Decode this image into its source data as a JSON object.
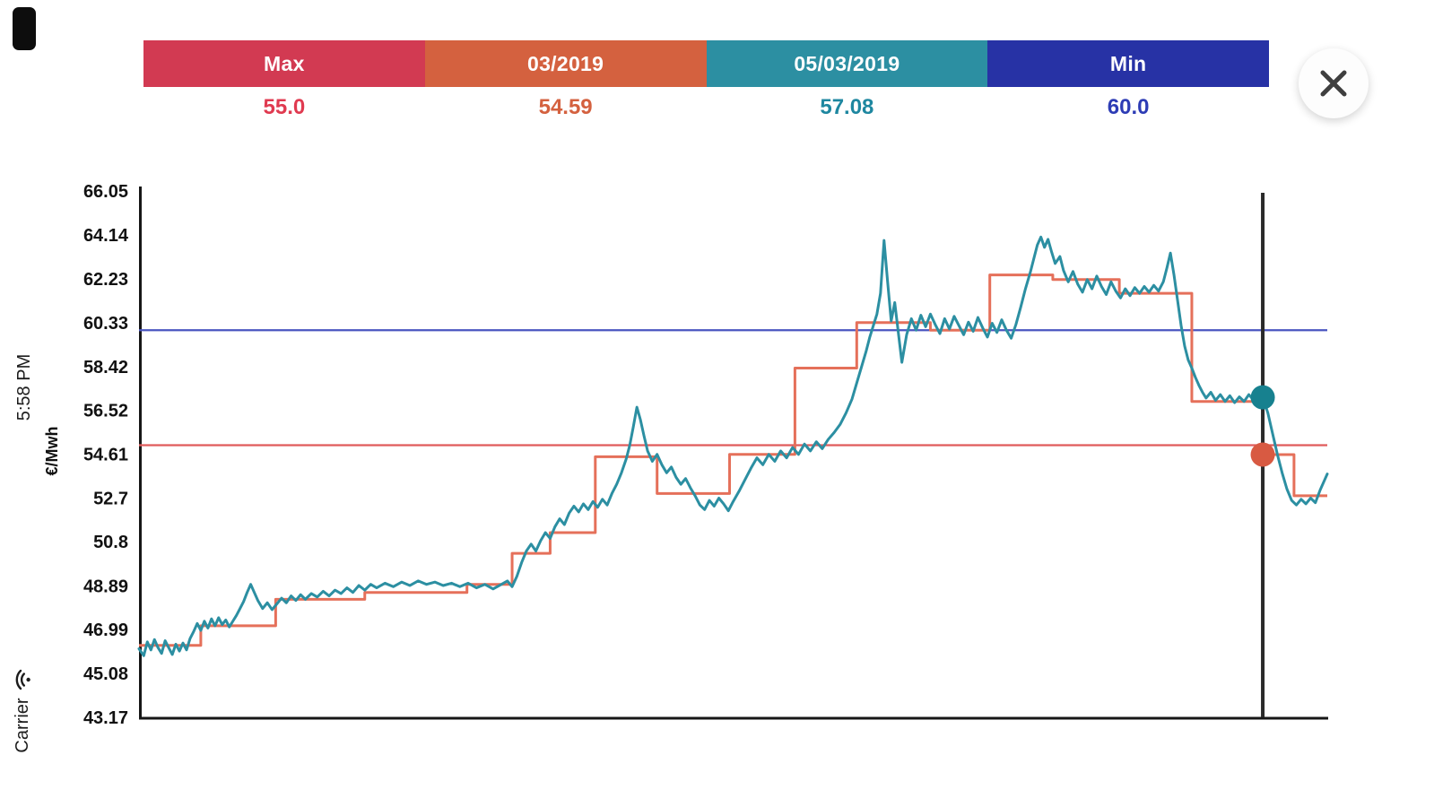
{
  "status_bar": {
    "time": "5:58 PM",
    "carrier": "Carrier"
  },
  "icons": {
    "close": "x-cross",
    "wifi": "wifi-fan",
    "battery": "battery-rotated"
  },
  "header": {
    "segments": [
      {
        "label": "Max",
        "value": "55.0",
        "bar_color": "#d23a52",
        "value_color": "#e03a50"
      },
      {
        "label": "03/2019",
        "value": "54.59",
        "bar_color": "#d4613f",
        "value_color": "#d4613f"
      },
      {
        "label": "05/03/2019",
        "value": "57.08",
        "bar_color": "#2c8fa2",
        "value_color": "#1e87a0"
      },
      {
        "label": "Min",
        "value": "60.0",
        "bar_color": "#2732a5",
        "value_color": "#2d3cb5"
      }
    ]
  },
  "chart_data": {
    "type": "line",
    "title": "",
    "xlabel": "",
    "ylabel": "€/Mwh",
    "ylim": [
      43.17,
      66.05
    ],
    "y_ticks": [
      66.05,
      64.14,
      62.23,
      60.33,
      58.42,
      56.52,
      54.61,
      52.7,
      50.8,
      48.89,
      46.99,
      45.08,
      43.17
    ],
    "x_ticks": [],
    "grid": false,
    "legend_position": "top",
    "reference_lines": [
      {
        "name": "max-level",
        "value": 55.0,
        "color": "#e05b5b"
      },
      {
        "name": "min-level",
        "value": 60.0,
        "color": "#4a55c0"
      }
    ],
    "cursor": {
      "x": 0.9457,
      "date": "05/03/2019",
      "spot_value": 57.08,
      "monthly_value": 54.59
    },
    "markers": [
      {
        "series": "spot",
        "x": 0.9457,
        "value": 57.08,
        "color": "#17818f"
      },
      {
        "series": "monthly",
        "x": 0.9457,
        "value": 54.59,
        "color": "#d85a42"
      }
    ],
    "series": [
      {
        "name": "05/03/2019 spot price",
        "color": "#2c8fa2",
        "points": [
          [
            0,
            46.15
          ],
          [
            0.004,
            45.85
          ],
          [
            0.007,
            46.45
          ],
          [
            0.01,
            46.1
          ],
          [
            0.013,
            46.55
          ],
          [
            0.016,
            46.2
          ],
          [
            0.019,
            45.95
          ],
          [
            0.022,
            46.5
          ],
          [
            0.025,
            46.2
          ],
          [
            0.028,
            45.9
          ],
          [
            0.031,
            46.35
          ],
          [
            0.034,
            46.05
          ],
          [
            0.037,
            46.4
          ],
          [
            0.04,
            46.1
          ],
          [
            0.043,
            46.6
          ],
          [
            0.046,
            46.9
          ],
          [
            0.049,
            47.25
          ],
          [
            0.052,
            46.95
          ],
          [
            0.055,
            47.35
          ],
          [
            0.058,
            47.05
          ],
          [
            0.061,
            47.45
          ],
          [
            0.064,
            47.15
          ],
          [
            0.067,
            47.5
          ],
          [
            0.07,
            47.2
          ],
          [
            0.073,
            47.4
          ],
          [
            0.076,
            47.1
          ],
          [
            0.079,
            47.35
          ],
          [
            0.082,
            47.6
          ],
          [
            0.085,
            47.9
          ],
          [
            0.088,
            48.2
          ],
          [
            0.091,
            48.6
          ],
          [
            0.094,
            48.95
          ],
          [
            0.097,
            48.6
          ],
          [
            0.1,
            48.25
          ],
          [
            0.104,
            47.9
          ],
          [
            0.108,
            48.15
          ],
          [
            0.112,
            47.85
          ],
          [
            0.116,
            48.1
          ],
          [
            0.12,
            48.35
          ],
          [
            0.124,
            48.15
          ],
          [
            0.128,
            48.45
          ],
          [
            0.132,
            48.25
          ],
          [
            0.136,
            48.5
          ],
          [
            0.14,
            48.3
          ],
          [
            0.145,
            48.55
          ],
          [
            0.15,
            48.4
          ],
          [
            0.155,
            48.65
          ],
          [
            0.16,
            48.45
          ],
          [
            0.165,
            48.7
          ],
          [
            0.17,
            48.55
          ],
          [
            0.175,
            48.8
          ],
          [
            0.18,
            48.6
          ],
          [
            0.185,
            48.9
          ],
          [
            0.19,
            48.7
          ],
          [
            0.195,
            48.95
          ],
          [
            0.2,
            48.8
          ],
          [
            0.207,
            49.0
          ],
          [
            0.214,
            48.85
          ],
          [
            0.221,
            49.05
          ],
          [
            0.228,
            48.9
          ],
          [
            0.235,
            49.1
          ],
          [
            0.242,
            48.95
          ],
          [
            0.249,
            49.05
          ],
          [
            0.256,
            48.9
          ],
          [
            0.263,
            49.0
          ],
          [
            0.27,
            48.85
          ],
          [
            0.277,
            49.0
          ],
          [
            0.284,
            48.8
          ],
          [
            0.291,
            48.95
          ],
          [
            0.298,
            48.75
          ],
          [
            0.305,
            48.95
          ],
          [
            0.31,
            49.1
          ],
          [
            0.314,
            48.85
          ],
          [
            0.318,
            49.3
          ],
          [
            0.322,
            49.9
          ],
          [
            0.326,
            50.4
          ],
          [
            0.33,
            50.7
          ],
          [
            0.334,
            50.4
          ],
          [
            0.338,
            50.85
          ],
          [
            0.342,
            51.2
          ],
          [
            0.346,
            50.95
          ],
          [
            0.35,
            51.45
          ],
          [
            0.354,
            51.8
          ],
          [
            0.358,
            51.55
          ],
          [
            0.362,
            52.05
          ],
          [
            0.366,
            52.35
          ],
          [
            0.37,
            52.1
          ],
          [
            0.374,
            52.45
          ],
          [
            0.378,
            52.2
          ],
          [
            0.382,
            52.55
          ],
          [
            0.386,
            52.3
          ],
          [
            0.39,
            52.65
          ],
          [
            0.394,
            52.4
          ],
          [
            0.398,
            52.9
          ],
          [
            0.402,
            53.3
          ],
          [
            0.406,
            53.8
          ],
          [
            0.41,
            54.4
          ],
          [
            0.413,
            55.0
          ],
          [
            0.416,
            55.8
          ],
          [
            0.419,
            56.65
          ],
          [
            0.422,
            56.1
          ],
          [
            0.425,
            55.4
          ],
          [
            0.428,
            54.75
          ],
          [
            0.432,
            54.3
          ],
          [
            0.436,
            54.6
          ],
          [
            0.44,
            54.15
          ],
          [
            0.444,
            53.8
          ],
          [
            0.448,
            54.05
          ],
          [
            0.452,
            53.6
          ],
          [
            0.456,
            53.3
          ],
          [
            0.46,
            53.55
          ],
          [
            0.464,
            53.15
          ],
          [
            0.468,
            52.8
          ],
          [
            0.472,
            52.4
          ],
          [
            0.476,
            52.2
          ],
          [
            0.48,
            52.6
          ],
          [
            0.484,
            52.35
          ],
          [
            0.488,
            52.7
          ],
          [
            0.492,
            52.45
          ],
          [
            0.496,
            52.15
          ],
          [
            0.5,
            52.55
          ],
          [
            0.505,
            53.0
          ],
          [
            0.51,
            53.5
          ],
          [
            0.515,
            54.0
          ],
          [
            0.52,
            54.45
          ],
          [
            0.525,
            54.15
          ],
          [
            0.53,
            54.6
          ],
          [
            0.535,
            54.3
          ],
          [
            0.54,
            54.75
          ],
          [
            0.545,
            54.45
          ],
          [
            0.55,
            54.9
          ],
          [
            0.555,
            54.6
          ],
          [
            0.56,
            55.05
          ],
          [
            0.565,
            54.75
          ],
          [
            0.57,
            55.15
          ],
          [
            0.575,
            54.85
          ],
          [
            0.58,
            55.25
          ],
          [
            0.585,
            55.55
          ],
          [
            0.59,
            55.9
          ],
          [
            0.595,
            56.4
          ],
          [
            0.6,
            57.0
          ],
          [
            0.604,
            57.7
          ],
          [
            0.608,
            58.4
          ],
          [
            0.612,
            59.1
          ],
          [
            0.615,
            59.7
          ],
          [
            0.618,
            60.2
          ],
          [
            0.621,
            60.7
          ],
          [
            0.624,
            61.6
          ],
          [
            0.627,
            63.9
          ],
          [
            0.63,
            62.1
          ],
          [
            0.633,
            60.4
          ],
          [
            0.636,
            61.2
          ],
          [
            0.639,
            59.9
          ],
          [
            0.642,
            58.6
          ],
          [
            0.646,
            59.8
          ],
          [
            0.65,
            60.5
          ],
          [
            0.654,
            60.0
          ],
          [
            0.658,
            60.65
          ],
          [
            0.662,
            60.15
          ],
          [
            0.666,
            60.7
          ],
          [
            0.67,
            60.25
          ],
          [
            0.674,
            59.85
          ],
          [
            0.678,
            60.5
          ],
          [
            0.682,
            60.05
          ],
          [
            0.686,
            60.6
          ],
          [
            0.69,
            60.2
          ],
          [
            0.694,
            59.8
          ],
          [
            0.698,
            60.35
          ],
          [
            0.702,
            59.95
          ],
          [
            0.706,
            60.55
          ],
          [
            0.71,
            60.1
          ],
          [
            0.714,
            59.7
          ],
          [
            0.718,
            60.3
          ],
          [
            0.722,
            59.9
          ],
          [
            0.726,
            60.45
          ],
          [
            0.73,
            60.0
          ],
          [
            0.734,
            59.65
          ],
          [
            0.738,
            60.25
          ],
          [
            0.742,
            61.0
          ],
          [
            0.746,
            61.8
          ],
          [
            0.75,
            62.5
          ],
          [
            0.753,
            63.1
          ],
          [
            0.756,
            63.7
          ],
          [
            0.759,
            64.05
          ],
          [
            0.762,
            63.6
          ],
          [
            0.765,
            63.95
          ],
          [
            0.768,
            63.4
          ],
          [
            0.771,
            62.9
          ],
          [
            0.775,
            63.2
          ],
          [
            0.778,
            62.6
          ],
          [
            0.782,
            62.1
          ],
          [
            0.786,
            62.55
          ],
          [
            0.79,
            62.0
          ],
          [
            0.794,
            61.65
          ],
          [
            0.798,
            62.2
          ],
          [
            0.802,
            61.8
          ],
          [
            0.806,
            62.35
          ],
          [
            0.81,
            61.9
          ],
          [
            0.814,
            61.55
          ],
          [
            0.818,
            62.1
          ],
          [
            0.822,
            61.7
          ],
          [
            0.826,
            61.4
          ],
          [
            0.83,
            61.8
          ],
          [
            0.834,
            61.5
          ],
          [
            0.838,
            61.85
          ],
          [
            0.842,
            61.6
          ],
          [
            0.846,
            61.9
          ],
          [
            0.85,
            61.65
          ],
          [
            0.854,
            61.95
          ],
          [
            0.858,
            61.7
          ],
          [
            0.862,
            62.1
          ],
          [
            0.865,
            62.7
          ],
          [
            0.868,
            63.35
          ],
          [
            0.871,
            62.4
          ],
          [
            0.874,
            61.3
          ],
          [
            0.877,
            60.2
          ],
          [
            0.88,
            59.3
          ],
          [
            0.883,
            58.7
          ],
          [
            0.886,
            58.35
          ],
          [
            0.889,
            57.95
          ],
          [
            0.892,
            57.6
          ],
          [
            0.895,
            57.3
          ],
          [
            0.898,
            57.05
          ],
          [
            0.902,
            57.3
          ],
          [
            0.906,
            56.95
          ],
          [
            0.91,
            57.2
          ],
          [
            0.914,
            56.9
          ],
          [
            0.918,
            57.15
          ],
          [
            0.922,
            56.85
          ],
          [
            0.926,
            57.1
          ],
          [
            0.93,
            56.9
          ],
          [
            0.934,
            57.2
          ],
          [
            0.938,
            56.95
          ],
          [
            0.942,
            57.15
          ],
          [
            0.9457,
            57.08
          ],
          [
            0.95,
            56.4
          ],
          [
            0.954,
            55.5
          ],
          [
            0.958,
            54.6
          ],
          [
            0.962,
            53.8
          ],
          [
            0.966,
            53.1
          ],
          [
            0.97,
            52.6
          ],
          [
            0.974,
            52.4
          ],
          [
            0.978,
            52.65
          ],
          [
            0.982,
            52.45
          ],
          [
            0.986,
            52.7
          ],
          [
            0.99,
            52.5
          ],
          [
            0.994,
            53.05
          ],
          [
            1.0,
            53.75
          ]
        ]
      },
      {
        "name": "03/2019 stepped price",
        "color": "#e5705a",
        "steps": [
          [
            0.0,
            0.052,
            46.3
          ],
          [
            0.052,
            0.115,
            47.15
          ],
          [
            0.115,
            0.19,
            48.3
          ],
          [
            0.19,
            0.276,
            48.6
          ],
          [
            0.276,
            0.314,
            48.95
          ],
          [
            0.314,
            0.346,
            50.3
          ],
          [
            0.346,
            0.384,
            51.2
          ],
          [
            0.384,
            0.436,
            54.5
          ],
          [
            0.436,
            0.497,
            52.9
          ],
          [
            0.497,
            0.552,
            54.6
          ],
          [
            0.552,
            0.604,
            58.35
          ],
          [
            0.604,
            0.666,
            60.33
          ],
          [
            0.666,
            0.716,
            60.0
          ],
          [
            0.716,
            0.769,
            62.4
          ],
          [
            0.769,
            0.825,
            62.2
          ],
          [
            0.825,
            0.886,
            61.6
          ],
          [
            0.886,
            0.9457,
            56.9
          ],
          [
            0.9457,
            0.972,
            54.59
          ],
          [
            0.972,
            1.0,
            52.8
          ]
        ]
      }
    ]
  }
}
